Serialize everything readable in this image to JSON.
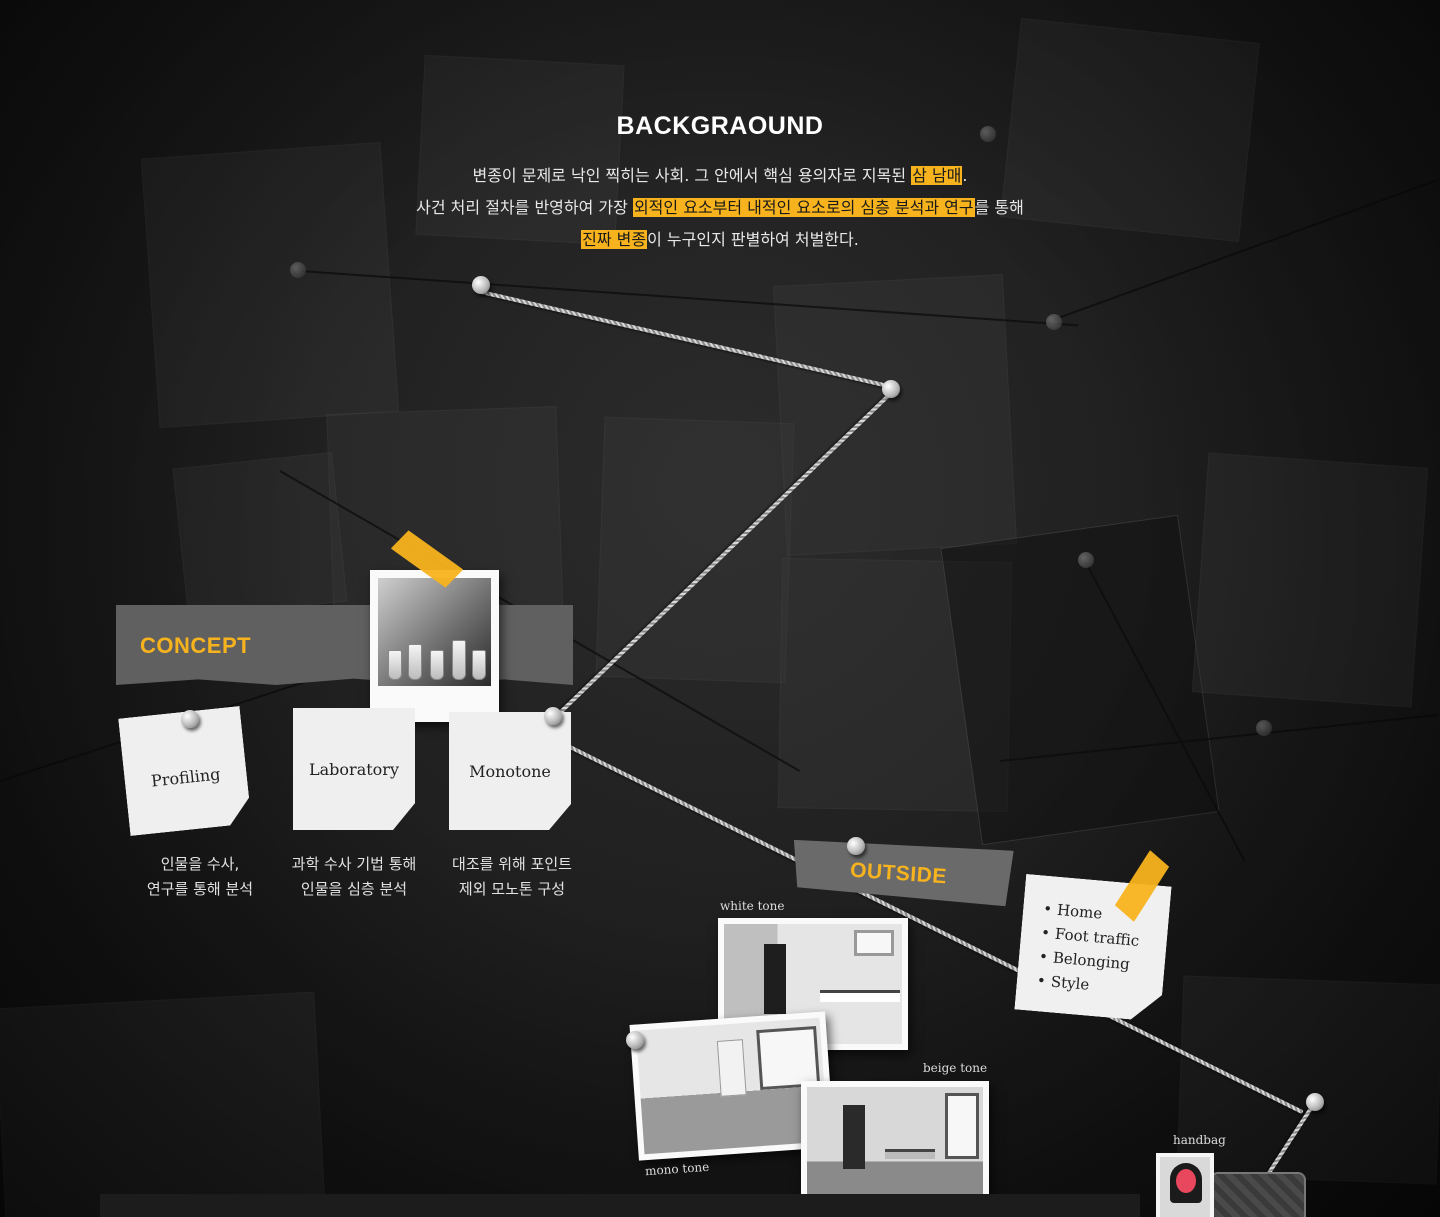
{
  "background": {
    "title": "BACKGRAOUND",
    "line1": {
      "before": "변종이 문제로 낙인 찍히는 사회. 그 안에서 핵심 용의자로 지목된 ",
      "highlight": "삼 남매",
      "after": "."
    },
    "line2": {
      "before": "사건 처리 절차를 반영하여 가장 ",
      "highlight": "외적인 요소부터 내적인 요소로의 심층 분석과 연구",
      "after": "를 통해"
    },
    "line3": {
      "highlight": "진짜 변종",
      "after": "이 누구인지 판별하여 처벌한다."
    }
  },
  "concept": {
    "label": "CONCEPT",
    "notes": [
      {
        "label": "Profiling",
        "caption_line1": "인물을 수사,",
        "caption_line2": "연구를 통해 분석"
      },
      {
        "label": "Laboratory",
        "caption_line1": "과학 수사 기법 통해",
        "caption_line2": "인물을 심층 분석"
      },
      {
        "label": "Monotone",
        "caption_line1": "대조를 위해 포인트",
        "caption_line2": "제외 모노톤 구성"
      }
    ]
  },
  "outside": {
    "label": "OUTSIDE",
    "list": [
      "Home",
      "Foot traffic",
      "Belonging",
      "Style"
    ],
    "photo_tags": {
      "white": "white tone",
      "mono": "mono tone",
      "beige": "beige tone",
      "handbag": "handbag"
    }
  },
  "colors": {
    "accent": "#f7b31d",
    "board": "#1c1c1c",
    "paper": "#efefef"
  },
  "icons": [
    "push-pin-icon",
    "tape-icon"
  ]
}
